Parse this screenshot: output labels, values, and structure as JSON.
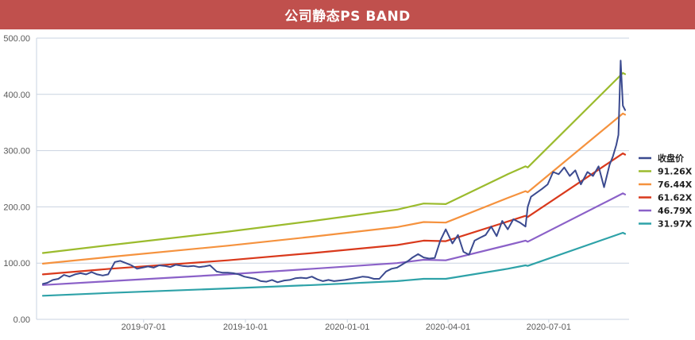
{
  "title": "公司静态PS BAND",
  "colors": {
    "title_bg": "#c0504d",
    "title_text": "#ffffff",
    "grid": "#c9d3e0",
    "axis_text": "#595959"
  },
  "chart_data": {
    "type": "line",
    "title": "公司静态PS BAND",
    "xlabel": "",
    "ylabel": "",
    "ylim": [
      0,
      500
    ],
    "y_ticks": [
      "0.00",
      "100.00",
      "200.00",
      "300.00",
      "400.00",
      "500.00"
    ],
    "y_tick_values": [
      0,
      100,
      200,
      300,
      400,
      500
    ],
    "x_range": [
      "2019-04-01",
      "2020-09-08"
    ],
    "x_ticks": [
      {
        "label": "2019-07-01",
        "date": "2019-07-01"
      },
      {
        "label": "2019-10-01",
        "date": "2019-10-01"
      },
      {
        "label": "2020-01-01",
        "date": "2020-01-01"
      },
      {
        "label": "2020-04-01",
        "date": "2020-04-01"
      },
      {
        "label": "2020-07-01",
        "date": "2020-07-01"
      }
    ],
    "grid": "horizontal",
    "legend_position": "right",
    "series": [
      {
        "name": "收盘价",
        "color": "#3b4a8f",
        "points": [
          [
            "2019-04-01",
            63
          ],
          [
            "2019-04-05",
            65
          ],
          [
            "2019-04-10",
            70
          ],
          [
            "2019-04-15",
            72
          ],
          [
            "2019-04-20",
            79
          ],
          [
            "2019-04-25",
            76
          ],
          [
            "2019-04-30",
            80
          ],
          [
            "2019-05-05",
            82
          ],
          [
            "2019-05-10",
            80
          ],
          [
            "2019-05-15",
            84
          ],
          [
            "2019-05-20",
            80
          ],
          [
            "2019-05-25",
            78
          ],
          [
            "2019-05-30",
            80
          ],
          [
            "2019-06-05",
            102
          ],
          [
            "2019-06-10",
            104
          ],
          [
            "2019-06-15",
            100
          ],
          [
            "2019-06-20",
            96
          ],
          [
            "2019-06-25",
            90
          ],
          [
            "2019-06-30",
            92
          ],
          [
            "2019-07-05",
            94
          ],
          [
            "2019-07-10",
            92
          ],
          [
            "2019-07-15",
            96
          ],
          [
            "2019-07-20",
            95
          ],
          [
            "2019-07-25",
            93
          ],
          [
            "2019-07-30",
            97
          ],
          [
            "2019-08-05",
            95
          ],
          [
            "2019-08-10",
            94
          ],
          [
            "2019-08-15",
            95
          ],
          [
            "2019-08-20",
            93
          ],
          [
            "2019-08-25",
            94
          ],
          [
            "2019-08-30",
            96
          ],
          [
            "2019-09-05",
            85
          ],
          [
            "2019-09-10",
            83
          ],
          [
            "2019-09-15",
            83
          ],
          [
            "2019-09-20",
            82
          ],
          [
            "2019-09-25",
            80
          ],
          [
            "2019-09-30",
            76
          ],
          [
            "2019-10-05",
            74
          ],
          [
            "2019-10-10",
            72
          ],
          [
            "2019-10-15",
            68
          ],
          [
            "2019-10-20",
            67
          ],
          [
            "2019-10-25",
            70
          ],
          [
            "2019-10-30",
            66
          ],
          [
            "2019-11-05",
            69
          ],
          [
            "2019-11-10",
            70
          ],
          [
            "2019-11-15",
            73
          ],
          [
            "2019-11-20",
            74
          ],
          [
            "2019-11-25",
            73
          ],
          [
            "2019-11-30",
            76
          ],
          [
            "2019-12-05",
            71
          ],
          [
            "2019-12-10",
            68
          ],
          [
            "2019-12-15",
            70
          ],
          [
            "2019-12-20",
            68
          ],
          [
            "2019-12-25",
            69
          ],
          [
            "2019-12-30",
            70
          ],
          [
            "2020-01-05",
            72
          ],
          [
            "2020-01-10",
            74
          ],
          [
            "2020-01-15",
            76
          ],
          [
            "2020-01-20",
            75
          ],
          [
            "2020-01-25",
            72
          ],
          [
            "2020-01-30",
            72
          ],
          [
            "2020-02-05",
            85
          ],
          [
            "2020-02-10",
            90
          ],
          [
            "2020-02-15",
            92
          ],
          [
            "2020-02-20",
            98
          ],
          [
            "2020-02-25",
            104
          ],
          [
            "2020-02-29",
            110
          ],
          [
            "2020-03-05",
            116
          ],
          [
            "2020-03-10",
            110
          ],
          [
            "2020-03-15",
            108
          ],
          [
            "2020-03-20",
            109
          ],
          [
            "2020-03-25",
            140
          ],
          [
            "2020-03-30",
            160
          ],
          [
            "2020-04-05",
            135
          ],
          [
            "2020-04-10",
            150
          ],
          [
            "2020-04-15",
            120
          ],
          [
            "2020-04-20",
            115
          ],
          [
            "2020-04-25",
            140
          ],
          [
            "2020-04-30",
            145
          ],
          [
            "2020-05-05",
            150
          ],
          [
            "2020-05-10",
            165
          ],
          [
            "2020-05-15",
            148
          ],
          [
            "2020-05-20",
            175
          ],
          [
            "2020-05-25",
            160
          ],
          [
            "2020-05-30",
            178
          ],
          [
            "2020-06-05",
            172
          ],
          [
            "2020-06-10",
            165
          ],
          [
            "2020-06-12",
            200
          ],
          [
            "2020-06-15",
            218
          ],
          [
            "2020-06-20",
            225
          ],
          [
            "2020-06-25",
            232
          ],
          [
            "2020-06-30",
            240
          ],
          [
            "2020-07-05",
            262
          ],
          [
            "2020-07-10",
            258
          ],
          [
            "2020-07-15",
            270
          ],
          [
            "2020-07-20",
            255
          ],
          [
            "2020-07-25",
            265
          ],
          [
            "2020-07-30",
            240
          ],
          [
            "2020-08-05",
            262
          ],
          [
            "2020-08-10",
            255
          ],
          [
            "2020-08-15",
            272
          ],
          [
            "2020-08-20",
            235
          ],
          [
            "2020-08-25",
            275
          ],
          [
            "2020-08-28",
            290
          ],
          [
            "2020-08-31",
            310
          ],
          [
            "2020-09-02",
            328
          ],
          [
            "2020-09-04",
            460
          ],
          [
            "2020-09-06",
            380
          ],
          [
            "2020-09-08",
            372
          ]
        ]
      },
      {
        "name": "91.26X",
        "color": "#9bbb2d",
        "points": [
          [
            "2019-04-01",
            118
          ],
          [
            "2019-06-01",
            132
          ],
          [
            "2019-09-15",
            156
          ],
          [
            "2019-12-01",
            175
          ],
          [
            "2020-02-15",
            195
          ],
          [
            "2020-03-10",
            206
          ],
          [
            "2020-03-30",
            205
          ],
          [
            "2020-05-25",
            258
          ],
          [
            "2020-06-10",
            272
          ],
          [
            "2020-06-12",
            270
          ],
          [
            "2020-09-06",
            438
          ],
          [
            "2020-09-08",
            436
          ]
        ]
      },
      {
        "name": "76.44X",
        "color": "#f5923e",
        "points": [
          [
            "2019-04-01",
            99
          ],
          [
            "2019-06-01",
            111
          ],
          [
            "2019-09-15",
            131
          ],
          [
            "2019-12-01",
            147
          ],
          [
            "2020-02-15",
            164
          ],
          [
            "2020-03-10",
            173
          ],
          [
            "2020-03-30",
            172
          ],
          [
            "2020-05-25",
            216
          ],
          [
            "2020-06-10",
            228
          ],
          [
            "2020-06-12",
            226
          ],
          [
            "2020-09-06",
            366
          ],
          [
            "2020-09-08",
            364
          ]
        ]
      },
      {
        "name": "61.62X",
        "color": "#d9391c",
        "points": [
          [
            "2019-04-01",
            80
          ],
          [
            "2019-06-01",
            90
          ],
          [
            "2019-09-15",
            105
          ],
          [
            "2019-12-01",
            118
          ],
          [
            "2020-02-15",
            132
          ],
          [
            "2020-03-10",
            140
          ],
          [
            "2020-03-30",
            139
          ],
          [
            "2020-05-25",
            174
          ],
          [
            "2020-06-10",
            184
          ],
          [
            "2020-06-12",
            182
          ],
          [
            "2020-09-06",
            295
          ],
          [
            "2020-09-08",
            293
          ]
        ]
      },
      {
        "name": "46.79X",
        "color": "#8b61c8",
        "points": [
          [
            "2019-04-01",
            61
          ],
          [
            "2019-06-01",
            68
          ],
          [
            "2019-09-15",
            80
          ],
          [
            "2019-12-01",
            90
          ],
          [
            "2020-02-15",
            100
          ],
          [
            "2020-03-10",
            106
          ],
          [
            "2020-03-30",
            105
          ],
          [
            "2020-05-25",
            132
          ],
          [
            "2020-06-10",
            140
          ],
          [
            "2020-06-12",
            138
          ],
          [
            "2020-09-06",
            224
          ],
          [
            "2020-09-08",
            222
          ]
        ]
      },
      {
        "name": "31.97X",
        "color": "#2ea2a8",
        "points": [
          [
            "2019-04-01",
            42
          ],
          [
            "2019-06-01",
            47
          ],
          [
            "2019-09-15",
            55
          ],
          [
            "2019-12-01",
            61
          ],
          [
            "2020-02-15",
            68
          ],
          [
            "2020-03-10",
            72
          ],
          [
            "2020-03-30",
            72
          ],
          [
            "2020-05-25",
            90
          ],
          [
            "2020-06-10",
            96
          ],
          [
            "2020-06-12",
            95
          ],
          [
            "2020-09-06",
            154
          ],
          [
            "2020-09-08",
            152
          ]
        ]
      }
    ]
  }
}
